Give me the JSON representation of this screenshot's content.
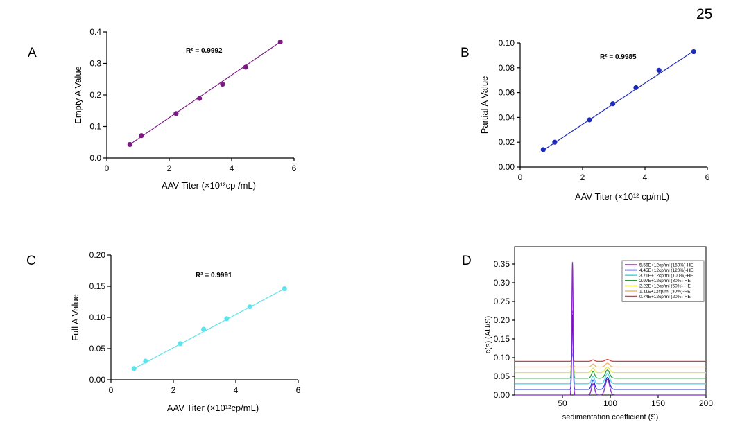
{
  "page_number": "25",
  "chart_data": [
    {
      "panel": "A",
      "type": "scatter",
      "xlabel": "AAV Titer (×10¹²cp /mL)",
      "ylabel": "Empty A Value",
      "annotation": "R² = 0.9992",
      "xlim": [
        0,
        6
      ],
      "ylim": [
        0,
        0.4
      ],
      "xticks": [
        "0",
        "2",
        "4",
        "6"
      ],
      "yticks": [
        "0.0",
        "0.1",
        "0.2",
        "0.3",
        "0.4"
      ],
      "color": "#7a1a82",
      "x": [
        0.74,
        1.11,
        2.22,
        2.97,
        3.71,
        4.45,
        5.56
      ],
      "y": [
        0.043,
        0.071,
        0.141,
        0.189,
        0.234,
        0.288,
        0.368
      ],
      "fit": [
        [
          0.74,
          0.043
        ],
        [
          5.56,
          0.368
        ]
      ]
    },
    {
      "panel": "B",
      "type": "scatter",
      "xlabel": "AAV Titer (×10¹² cp/mL)",
      "ylabel": "Partial A Value",
      "annotation": "R² = 0.9985",
      "xlim": [
        0,
        6
      ],
      "ylim": [
        0,
        0.1
      ],
      "xticks": [
        "0",
        "2",
        "4",
        "6"
      ],
      "yticks": [
        "0.00",
        "0.02",
        "0.04",
        "0.06",
        "0.08",
        "0.10"
      ],
      "color": "#1e2bb8",
      "x": [
        0.74,
        1.11,
        2.22,
        2.97,
        3.71,
        4.45,
        5.56
      ],
      "y": [
        0.014,
        0.02,
        0.038,
        0.051,
        0.064,
        0.078,
        0.093
      ],
      "fit": [
        [
          0.74,
          0.0135
        ],
        [
          5.56,
          0.0935
        ]
      ]
    },
    {
      "panel": "C",
      "type": "scatter",
      "xlabel": "AAV Titer (×10¹²cp/mL)",
      "ylabel": "Full A Value",
      "annotation": "R² = 0.9991",
      "xlim": [
        0,
        6
      ],
      "ylim": [
        0,
        0.2
      ],
      "xticks": [
        "0",
        "2",
        "4",
        "6"
      ],
      "yticks": [
        "0.00",
        "0.05",
        "0.10",
        "0.15",
        "0.20"
      ],
      "color": "#5fe4ec",
      "x": [
        0.74,
        1.11,
        2.22,
        2.97,
        3.71,
        4.45,
        5.56
      ],
      "y": [
        0.018,
        0.03,
        0.058,
        0.081,
        0.098,
        0.117,
        0.146
      ],
      "fit": [
        [
          0.74,
          0.018
        ],
        [
          5.56,
          0.146
        ]
      ]
    },
    {
      "panel": "D",
      "type": "line",
      "xlabel": "sedimentation coefficient (S)",
      "ylabel": "c(s) (AU/S)",
      "xlim": [
        0,
        200
      ],
      "ylim": [
        0,
        0.35
      ],
      "xticks": [
        "50",
        "100",
        "150",
        "200"
      ],
      "xtick_values": [
        50,
        100,
        150,
        200
      ],
      "yticks": [
        "0.00",
        "0.05",
        "0.10",
        "0.15",
        "0.20",
        "0.25",
        "0.30",
        "0.35"
      ],
      "legend_position": "top-right",
      "series": [
        {
          "name": "5.56E+12cp/ml (150%)-HE",
          "color": "#8b2ac9",
          "baseline": 0.0,
          "peak60": 0.355,
          "peak82": 0.03,
          "peak97": 0.042
        },
        {
          "name": "4.45E+12cp/ml (120%)-HE",
          "color": "#2233cc",
          "baseline": 0.015,
          "peak60": 0.2,
          "peak82": 0.025,
          "peak97": 0.032
        },
        {
          "name": "3.71E+12cp/ml (100%)-HE",
          "color": "#4fd8e8",
          "baseline": 0.03,
          "peak60": 0.19,
          "peak82": 0.02,
          "peak97": 0.028
        },
        {
          "name": "2.97E+12cp/ml (80%)-HE",
          "color": "#2a9a3a",
          "baseline": 0.045,
          "peak60": 0.18,
          "peak82": 0.018,
          "peak97": 0.022
        },
        {
          "name": "2.22E+12cp/ml (60%)-HE",
          "color": "#e8e84a",
          "baseline": 0.06,
          "peak60": 0.11,
          "peak82": 0.012,
          "peak97": 0.015
        },
        {
          "name": "1.11E+12cp/ml (30%)-HE",
          "color": "#f2b36a",
          "baseline": 0.075,
          "peak60": 0.05,
          "peak82": 0.008,
          "peak97": 0.01
        },
        {
          "name": "0.74E+12cp/ml (20%)-HE",
          "color": "#d84040",
          "baseline": 0.09,
          "peak60": 0.02,
          "peak82": 0.004,
          "peak97": 0.005
        }
      ]
    }
  ]
}
